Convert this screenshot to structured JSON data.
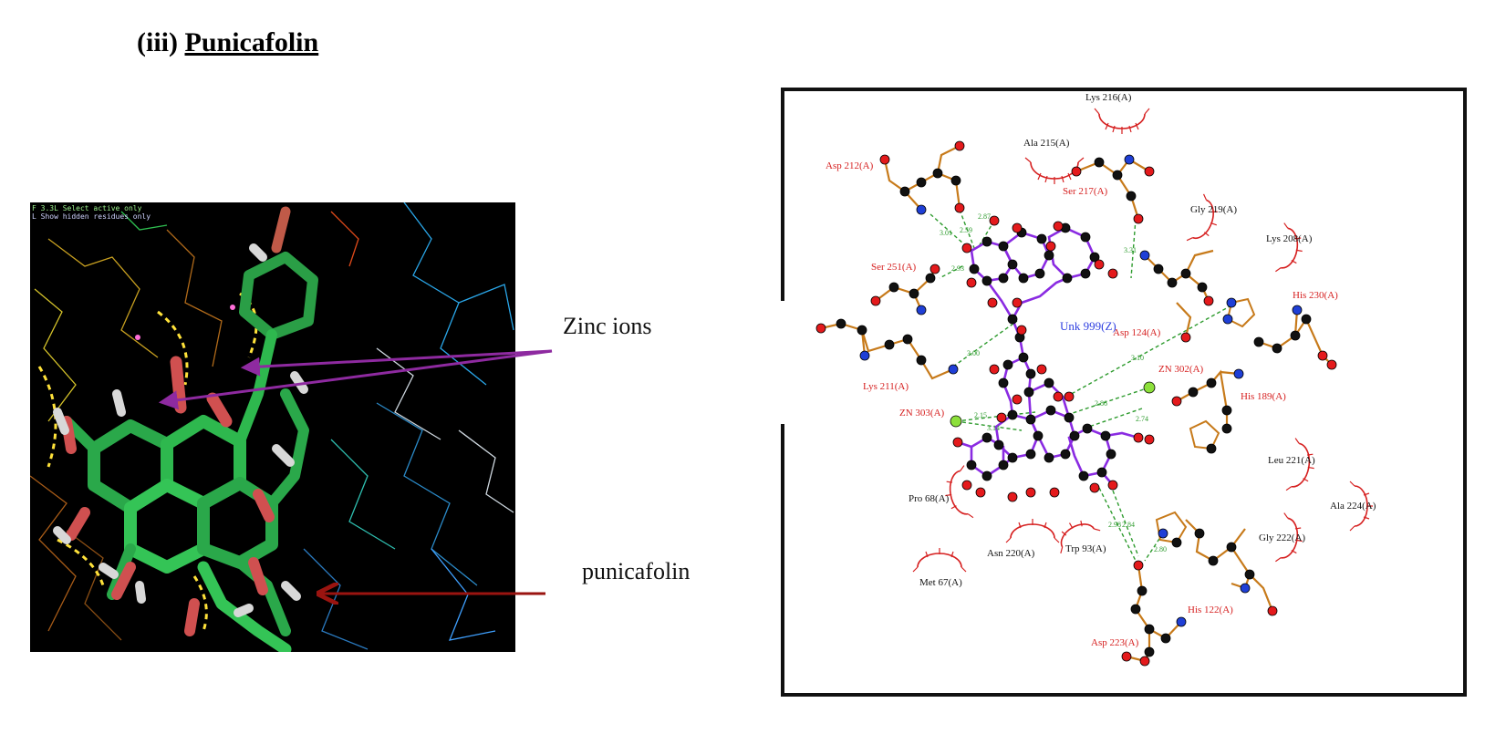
{
  "heading": {
    "numeral": "(iii)",
    "name": "Punicafolin"
  },
  "left_view": {
    "legend_line1": "F 3.3L  Select active only",
    "legend_line2": "L  Show hidden residues only"
  },
  "callouts": {
    "zinc": "Zinc ions",
    "ligand": "punicafolin"
  },
  "residues": {
    "lys216": "Lys 216(A)",
    "ala215": "Ala 215(A)",
    "asp212": "Asp 212(A)",
    "ser217": "Ser 217(A)",
    "gly219": "Gly 219(A)",
    "lys208": "Lys 208(A)",
    "ser251": "Ser 251(A)",
    "his230": "His 230(A)",
    "unk999": "Unk 999(Z)",
    "asp124": "Asp 124(A)",
    "lys211": "Lys 211(A)",
    "zn302": "ZN 302(A)",
    "his189": "His 189(A)",
    "zn303": "ZN 303(A)",
    "leu221": "Leu 221(A)",
    "pro68": "Pro 68(A)",
    "ala224": "Ala 224(A)",
    "asn220": "Asn 220(A)",
    "trp93": "Trp 93(A)",
    "gly222": "Gly 222(A)",
    "met67": "Met 67(A)",
    "his122": "His 122(A)",
    "asp223": "Asp 223(A)"
  },
  "hbond_distances": [
    "3.01",
    "2.59",
    "2.87",
    "2.93",
    "3.31",
    "3.00",
    "3.10",
    "2.86",
    "2.74",
    "2.15",
    "3.14",
    "2.84",
    "2.80",
    "2.98"
  ],
  "colors": {
    "carbon": "#000000",
    "oxygen": "#e41a1c",
    "nitrogen": "#1f3fd6",
    "ligand_bond": "#8a2be2",
    "residue_bond": "#c77a1a",
    "hbond": "#2e9b2e",
    "zinc": "#8de03b",
    "hydrophobic": "#d62020"
  }
}
